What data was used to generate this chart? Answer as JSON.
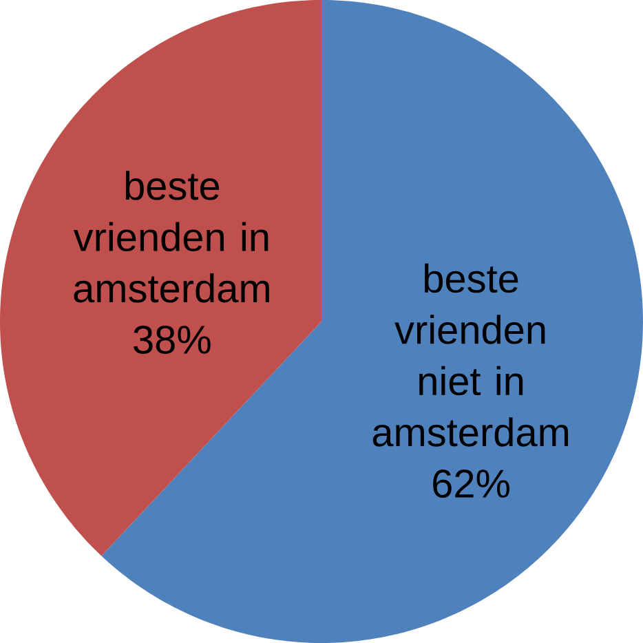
{
  "chart_data": {
    "type": "pie",
    "categories": [
      "beste vrienden niet in amsterdam",
      "beste vrienden in amsterdam"
    ],
    "values": [
      62,
      38
    ],
    "colors": [
      "#4f81bd",
      "#c0504d"
    ],
    "value_labels": [
      "62%",
      "38%"
    ]
  }
}
